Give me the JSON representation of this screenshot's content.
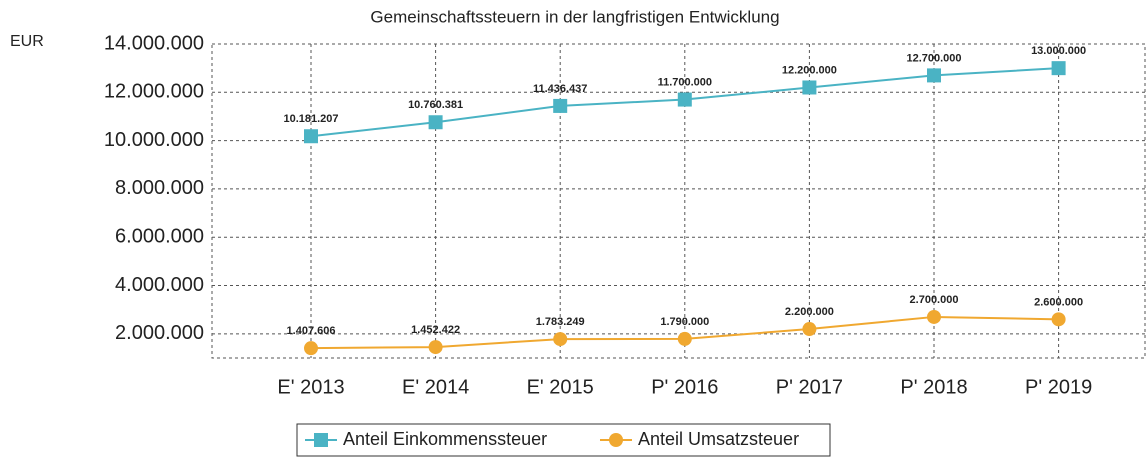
{
  "chart_data": {
    "type": "line",
    "title": "Gemeinschaftssteuern in der langfristigen Entwicklung",
    "y_label": "EUR",
    "categories": [
      "E' 2013",
      "E' 2014",
      "E' 2015",
      "P' 2016",
      "P' 2017",
      "P' 2018",
      "P' 2019"
    ],
    "series": [
      {
        "name": "Anteil Einkommenssteuer",
        "color": "#4ab3c4",
        "marker": "square",
        "values": [
          10181207,
          10760381,
          11436437,
          11700000,
          12200000,
          12700000,
          13000000
        ],
        "value_labels": [
          "10.181.207",
          "10.760.381",
          "11.436.437",
          "11.700.000",
          "12.200.000",
          "12.700.000",
          "13.000.000"
        ]
      },
      {
        "name": "Anteil Umsatzsteuer",
        "color": "#f0a830",
        "marker": "circle",
        "values": [
          1407606,
          1452422,
          1783249,
          1790000,
          2200000,
          2700000,
          2600000
        ],
        "value_labels": [
          "1.407.606",
          "1.452.422",
          "1.783.249",
          "1.790.000",
          "2.200.000",
          "2.700.000",
          "2.600.000"
        ]
      }
    ],
    "ylim": [
      1000000,
      14000000
    ],
    "yticks": [
      {
        "value": 2000000,
        "label": "2.000.000"
      },
      {
        "value": 4000000,
        "label": "4.000.000"
      },
      {
        "value": 6000000,
        "label": "6.000.000"
      },
      {
        "value": 8000000,
        "label": "8.000.000"
      },
      {
        "value": 10000000,
        "label": "10.000.000"
      },
      {
        "value": 12000000,
        "label": "12.000.000"
      },
      {
        "value": 14000000,
        "label": "14.000.000"
      }
    ],
    "grid": true,
    "legend": "bottom"
  }
}
